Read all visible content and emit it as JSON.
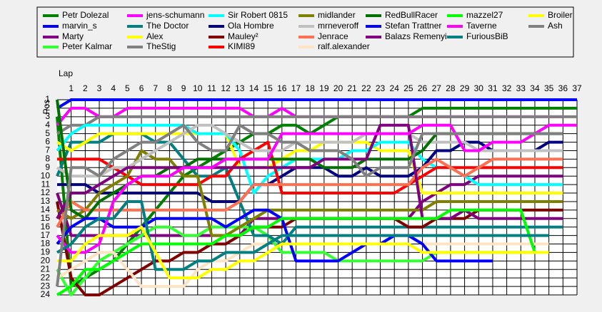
{
  "chart_data": {
    "type": "line",
    "x_label": "Lap",
    "y_label": "Pos",
    "x": [
      0,
      1,
      2,
      3,
      4,
      5,
      6,
      7,
      8,
      9,
      10,
      11,
      12,
      13,
      14,
      15,
      16,
      17,
      18,
      19,
      20,
      21,
      22,
      23,
      24,
      25,
      26,
      27,
      28,
      29,
      30,
      31,
      32,
      33,
      34,
      35,
      36,
      37
    ],
    "xlim": [
      0,
      37
    ],
    "xticks": [
      1,
      2,
      3,
      4,
      5,
      6,
      7,
      8,
      9,
      10,
      11,
      12,
      13,
      14,
      15,
      16,
      17,
      18,
      19,
      20,
      21,
      22,
      23,
      24,
      25,
      26,
      27,
      28,
      29,
      30,
      31,
      32,
      33,
      34,
      35,
      36,
      37
    ],
    "ylim": [
      1,
      24
    ],
    "y_inverted": true,
    "yticks": [
      1,
      2,
      3,
      4,
      5,
      6,
      7,
      8,
      9,
      10,
      11,
      12,
      13,
      14,
      15,
      16,
      17,
      18,
      19,
      20,
      21,
      22,
      23,
      24
    ],
    "grid": true,
    "series": [
      {
        "name": "Petr Dolezal",
        "color": "#008000",
        "values": [
          3,
          23,
          22,
          21,
          20,
          18,
          16,
          14,
          12,
          10,
          9,
          8,
          7,
          6,
          5,
          5,
          4,
          4,
          5,
          4,
          3,
          3,
          3,
          3,
          3,
          3,
          2,
          2,
          2,
          2,
          2,
          2,
          2,
          2,
          2,
          2,
          2,
          2
        ]
      },
      {
        "name": "marvin_s",
        "color": "#0000ff",
        "values": [
          2,
          1,
          1,
          1,
          1,
          1,
          1,
          1,
          1,
          1,
          1,
          1,
          1,
          1,
          1,
          1,
          1,
          1,
          1,
          1,
          1,
          1,
          1,
          1,
          1,
          1,
          1,
          1,
          1,
          1,
          1,
          1,
          1,
          1,
          1,
          1,
          1,
          1
        ]
      },
      {
        "name": "Marty",
        "color": "#800080",
        "values": [
          12,
          17,
          17,
          17,
          17,
          17,
          17,
          17,
          17,
          17,
          17,
          17,
          17,
          17,
          15,
          15,
          15,
          15,
          15,
          15,
          15,
          15,
          15,
          15,
          15,
          15,
          13,
          12,
          11,
          11,
          10,
          10,
          10,
          10,
          10,
          10,
          10,
          null
        ]
      },
      {
        "name": "Peter Kalmar",
        "color": "#33ff33",
        "values": [
          21,
          24,
          22,
          20,
          19,
          18,
          17,
          16,
          16,
          17,
          17,
          16,
          16,
          16,
          16,
          17,
          19,
          19,
          19,
          19,
          20,
          20,
          20,
          20,
          20,
          20,
          20,
          19,
          19,
          19,
          19,
          19,
          19,
          19,
          19,
          null,
          null,
          null
        ]
      },
      {
        "name": "jens-schumann",
        "color": "#ff00ff",
        "values": [
          4,
          2,
          2,
          3,
          3,
          2,
          2,
          2,
          2,
          2,
          2,
          2,
          2,
          2,
          3,
          3,
          2,
          3,
          3,
          3,
          3,
          3,
          3,
          3,
          3,
          3,
          3,
          3,
          3,
          3,
          3,
          3,
          3,
          3,
          3,
          3,
          3,
          null
        ]
      },
      {
        "name": "The Doctor",
        "color": "#008080",
        "values": [
          10,
          6,
          6,
          6,
          5,
          5,
          5,
          6,
          6,
          8,
          10,
          10,
          9,
          13,
          17,
          17,
          18,
          16,
          16,
          16,
          16,
          16,
          16,
          16,
          16,
          16,
          16,
          16,
          16,
          16,
          16,
          16,
          16,
          16,
          16,
          16,
          16,
          null
        ]
      },
      {
        "name": "Alex",
        "color": "#ffff00",
        "values": [
          6,
          7,
          6,
          5,
          5,
          5,
          5,
          5,
          5,
          5,
          5,
          5,
          5,
          9,
          9,
          9,
          8,
          7,
          7,
          6,
          6,
          6,
          6,
          7,
          7,
          7,
          12,
          12,
          12,
          12,
          12,
          12,
          12,
          12,
          12,
          12,
          12,
          null
        ]
      },
      {
        "name": "TheStig",
        "color": "#808080",
        "values": [
          5,
          4,
          4,
          3,
          3,
          3,
          3,
          3,
          3,
          3,
          3,
          3,
          3,
          3,
          3,
          3,
          3,
          3,
          3,
          3,
          3,
          3,
          3,
          3,
          3,
          3,
          3,
          3,
          3,
          3,
          3,
          3,
          3,
          3,
          3,
          3,
          3,
          3
        ]
      },
      {
        "name": "Sir Robert 0815",
        "color": "#00ffff",
        "values": [
          7,
          5,
          4,
          4,
          4,
          4,
          4,
          4,
          4,
          4,
          5,
          5,
          5,
          7,
          12,
          10,
          9,
          8,
          8,
          8,
          8,
          7,
          7,
          6,
          6,
          6,
          8,
          9,
          9,
          10,
          11,
          11,
          11,
          11,
          11,
          11,
          11,
          null
        ]
      },
      {
        "name": "Ola Hombre",
        "color": "#000080",
        "values": [
          11,
          11,
          11,
          12,
          12,
          12,
          12,
          12,
          12,
          12,
          12,
          13,
          13,
          13,
          11,
          11,
          10,
          9,
          9,
          9,
          10,
          10,
          9,
          10,
          10,
          10,
          9,
          7,
          7,
          6,
          6,
          7,
          7,
          7,
          7,
          6,
          6,
          null
        ]
      },
      {
        "name": "Mauley²",
        "color": "#800000",
        "values": [
          13,
          22,
          24,
          24,
          23,
          22,
          21,
          20,
          20,
          19,
          19,
          18,
          18,
          17,
          16,
          16,
          16,
          15,
          15,
          15,
          15,
          15,
          15,
          15,
          15,
          16,
          16,
          15,
          15,
          15,
          14,
          14,
          14,
          14,
          14,
          14,
          14,
          null
        ]
      },
      {
        "name": "KIMI89",
        "color": "#ff0000",
        "values": [
          8,
          8,
          8,
          8,
          9,
          10,
          11,
          11,
          11,
          11,
          11,
          10,
          10,
          8,
          7,
          6,
          12,
          12,
          12,
          12,
          12,
          12,
          12,
          12,
          12,
          11,
          10,
          9,
          9,
          9,
          9,
          9,
          9,
          9,
          9,
          9,
          9,
          null
        ]
      },
      {
        "name": "midlander",
        "color": "#808000",
        "values": [
          14,
          15,
          14,
          12,
          11,
          10,
          7,
          8,
          8,
          10,
          10,
          17,
          17,
          16,
          15,
          14,
          14,
          14,
          14,
          14,
          14,
          14,
          14,
          14,
          14,
          14,
          14,
          13,
          13,
          13,
          13,
          13,
          13,
          13,
          13,
          13,
          13,
          null
        ]
      },
      {
        "name": "mrneveroff",
        "color": "#c0c0c0",
        "values": [
          9,
          10,
          10,
          10,
          9,
          9,
          8,
          7,
          6,
          5,
          4,
          4,
          5,
          6,
          7,
          7,
          7,
          6,
          6,
          6,
          6,
          6,
          5,
          5,
          5,
          5,
          6,
          6,
          6,
          6,
          7,
          7,
          7,
          7,
          7,
          7,
          7,
          null
        ]
      },
      {
        "name": "Jenrace",
        "color": "#ff7050",
        "values": [
          16,
          13,
          14,
          14,
          14,
          14,
          14,
          14,
          14,
          14,
          14,
          14,
          14,
          13,
          11,
          11,
          11,
          11,
          11,
          11,
          11,
          11,
          11,
          11,
          11,
          11,
          9,
          8,
          9,
          10,
          9,
          8,
          8,
          8,
          8,
          8,
          8,
          null
        ]
      },
      {
        "name": "ralf.alexander",
        "color": "#ffe4c4",
        "values": [
          22,
          21,
          20,
          19,
          19,
          21,
          23,
          23,
          23,
          23,
          21,
          20,
          20,
          19,
          18,
          18,
          17,
          17,
          17,
          17,
          17,
          17,
          17,
          17,
          17,
          17,
          18,
          18,
          18,
          18,
          18,
          18,
          18,
          18,
          18,
          18,
          null,
          null
        ]
      },
      {
        "name": "RedBullRacer",
        "color": "#007000",
        "values": [
          1,
          14,
          15,
          13,
          12,
          11,
          10,
          10,
          9,
          9,
          8,
          8,
          8,
          8,
          8,
          8,
          8,
          8,
          8,
          9,
          9,
          9,
          8,
          8,
          8,
          8,
          7,
          5,
          5,
          5,
          5,
          5,
          5,
          5,
          5,
          5,
          5,
          null
        ]
      },
      {
        "name": "Stefan Trattner",
        "color": "#0000ff",
        "values": [
          18,
          16,
          15,
          15,
          16,
          16,
          16,
          15,
          15,
          15,
          15,
          15,
          16,
          15,
          14,
          14,
          15,
          20,
          20,
          20,
          20,
          19,
          18,
          18,
          17,
          17,
          18,
          20,
          20,
          20,
          20,
          20,
          null,
          null,
          null,
          null,
          null,
          null
        ]
      },
      {
        "name": "Balazs Remenyi",
        "color": "#800080",
        "values": [
          15,
          12,
          12,
          11,
          10,
          9,
          9,
          9,
          9,
          9,
          9,
          9,
          9,
          9,
          9,
          9,
          9,
          9,
          9,
          8,
          8,
          8,
          8,
          4,
          4,
          4,
          15,
          15,
          15,
          14,
          15,
          15,
          15,
          15,
          15,
          15,
          15,
          null
        ]
      },
      {
        "name": "mazzel27",
        "color": "#00ff00",
        "values": [
          24,
          23,
          21,
          21,
          20,
          19,
          18,
          18,
          18,
          18,
          18,
          18,
          17,
          17,
          16,
          16,
          15,
          15,
          15,
          15,
          15,
          15,
          15,
          15,
          15,
          15,
          15,
          15,
          14,
          14,
          14,
          14,
          14,
          14,
          19,
          null,
          null,
          null
        ]
      },
      {
        "name": "Taverne",
        "color": "#ff00ff",
        "values": [
          17,
          19,
          19,
          18,
          13,
          11,
          10,
          10,
          10,
          9,
          9,
          9,
          8,
          8,
          8,
          8,
          5,
          5,
          5,
          5,
          5,
          5,
          5,
          5,
          5,
          5,
          4,
          4,
          4,
          7,
          7,
          6,
          6,
          6,
          5,
          4,
          4,
          4
        ]
      },
      {
        "name": "FuriousBiB",
        "color": "#008080",
        "values": [
          19,
          18,
          16,
          15,
          15,
          13,
          13,
          21,
          21,
          21,
          20,
          20,
          19,
          19,
          19,
          18,
          17,
          17,
          17,
          17,
          17,
          17,
          17,
          17,
          17,
          17,
          17,
          17,
          17,
          17,
          17,
          17,
          17,
          17,
          17,
          17,
          null,
          null
        ]
      },
      {
        "name": "Broiler",
        "color": "#ffff00",
        "values": [
          20,
          20,
          18,
          17,
          17,
          17,
          16,
          19,
          22,
          22,
          22,
          21,
          21,
          20,
          20,
          19,
          18,
          18,
          18,
          18,
          18,
          18,
          18,
          18,
          18,
          18,
          19,
          19,
          19,
          19,
          19,
          19,
          19,
          19,
          19,
          19,
          null,
          null
        ]
      },
      {
        "name": "Ash",
        "color": "#808080",
        "values": [
          23,
          9,
          9,
          10,
          8,
          7,
          6,
          6,
          5,
          4,
          6,
          7,
          7,
          4,
          5,
          5,
          6,
          6,
          7,
          7,
          7,
          8,
          10,
          9,
          9,
          9,
          5,
          5,
          5,
          5,
          5,
          5,
          5,
          5,
          5,
          5,
          5,
          null
        ]
      }
    ]
  }
}
